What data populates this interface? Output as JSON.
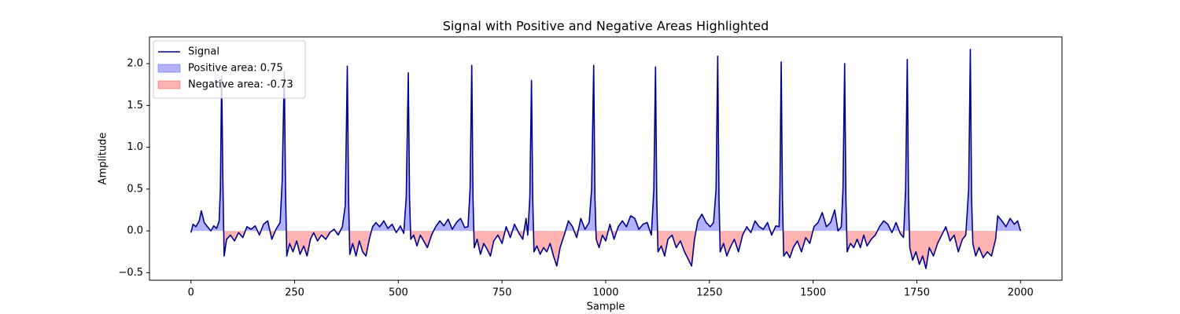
{
  "chart_data": {
    "type": "line",
    "title": "Signal with Positive and Negative Areas Highlighted",
    "x_label": "Sample",
    "y_label": "Amplitude",
    "xlim": [
      -100,
      2100
    ],
    "ylim": [
      -0.59,
      2.32
    ],
    "xticks": [
      0,
      250,
      500,
      750,
      1000,
      1250,
      1500,
      1750,
      2000
    ],
    "yticks": [
      {
        "value": -0.5,
        "label": "−0.5"
      },
      {
        "value": 0,
        "label": "0.0"
      },
      0.5,
      {
        "value": 1,
        "label": "1.0"
      },
      1.5,
      {
        "value": 2,
        "label": "2.0"
      }
    ],
    "grid": false,
    "legend": "upper left",
    "series": [
      {
        "name": "Signal",
        "color": "#00008b",
        "x": [
          0,
          5,
          12,
          20,
          25,
          32,
          40,
          48,
          55,
          62,
          68,
          71,
          74,
          77,
          80,
          86,
          95,
          105,
          115,
          125,
          135,
          145,
          155,
          165,
          175,
          185,
          195,
          205,
          215,
          220,
          225,
          228,
          231,
          238,
          246,
          255,
          263,
          272,
          280,
          288,
          296,
          305,
          315,
          325,
          335,
          345,
          355,
          365,
          372,
          377,
          380,
          383,
          390,
          398,
          406,
          414,
          422,
          430,
          438,
          446,
          455,
          465,
          475,
          485,
          495,
          505,
          513,
          519,
          524,
          527,
          530,
          537,
          545,
          553,
          561,
          570,
          580,
          590,
          600,
          610,
          620,
          630,
          640,
          650,
          660,
          668,
          673,
          677,
          680,
          683,
          690,
          698,
          706,
          714,
          722,
          730,
          740,
          750,
          760,
          770,
          780,
          790,
          800,
          808,
          812,
          817,
          821,
          824,
          827,
          834,
          842,
          850,
          858,
          866,
          874,
          882,
          890,
          900,
          910,
          920,
          930,
          940,
          950,
          960,
          966,
          971,
          974,
          977,
          984,
          992,
          1000,
          1010,
          1020,
          1030,
          1040,
          1050,
          1060,
          1070,
          1080,
          1090,
          1100,
          1110,
          1116,
          1120,
          1123,
          1126,
          1134,
          1142,
          1150,
          1160,
          1170,
          1180,
          1190,
          1200,
          1207,
          1214,
          1222,
          1232,
          1242,
          1252,
          1260,
          1266,
          1270,
          1273,
          1276,
          1284,
          1292,
          1300,
          1310,
          1320,
          1330,
          1340,
          1350,
          1360,
          1370,
          1380,
          1390,
          1400,
          1410,
          1418,
          1420,
          1423,
          1426,
          1429,
          1436,
          1444,
          1452,
          1462,
          1472,
          1482,
          1492,
          1502,
          1512,
          1522,
          1532,
          1542,
          1552,
          1560,
          1568,
          1572,
          1576,
          1579,
          1582,
          1590,
          1598,
          1606,
          1614,
          1622,
          1630,
          1640,
          1650,
          1660,
          1670,
          1680,
          1690,
          1700,
          1710,
          1718,
          1723,
          1727,
          1730,
          1733,
          1740,
          1748,
          1756,
          1764,
          1772,
          1780,
          1790,
          1800,
          1810,
          1820,
          1830,
          1840,
          1850,
          1860,
          1868,
          1875,
          1879,
          1882,
          1885,
          1892,
          1900,
          1910,
          1920,
          1930,
          1940,
          1945,
          1955,
          1965,
          1975,
          1985,
          1993,
          2000
        ],
        "values": [
          -0.02,
          0.08,
          0.05,
          0.12,
          0.24,
          0.1,
          0.05,
          0.0,
          0.06,
          0.03,
          0.12,
          0.5,
          1.85,
          0.6,
          -0.3,
          -0.1,
          -0.05,
          -0.12,
          -0.02,
          -0.08,
          0.05,
          0.02,
          0.06,
          -0.05,
          0.08,
          0.12,
          -0.1,
          0.02,
          0.1,
          0.6,
          1.9,
          0.5,
          -0.3,
          -0.15,
          -0.25,
          -0.12,
          -0.28,
          -0.18,
          -0.3,
          -0.1,
          -0.02,
          -0.12,
          -0.05,
          -0.1,
          -0.02,
          0.02,
          -0.05,
          0.05,
          0.3,
          1.97,
          0.4,
          -0.28,
          -0.15,
          -0.3,
          -0.12,
          -0.25,
          -0.3,
          -0.1,
          0.05,
          0.1,
          0.05,
          0.12,
          0.03,
          0.08,
          -0.02,
          0.06,
          -0.03,
          0.4,
          1.89,
          0.4,
          -0.1,
          -0.05,
          -0.18,
          -0.05,
          -0.12,
          -0.2,
          -0.05,
          0.05,
          0.12,
          0.06,
          0.14,
          0.02,
          0.1,
          0.15,
          0.04,
          0.05,
          0.5,
          1.98,
          0.4,
          -0.2,
          -0.1,
          -0.28,
          -0.15,
          -0.22,
          -0.3,
          -0.12,
          -0.05,
          -0.15,
          0.05,
          -0.08,
          0.08,
          -0.02,
          -0.1,
          0.15,
          -0.05,
          0.4,
          1.8,
          0.4,
          -0.25,
          -0.18,
          -0.28,
          -0.2,
          -0.25,
          -0.15,
          -0.3,
          -0.42,
          -0.2,
          -0.05,
          0.12,
          0.05,
          -0.08,
          0.15,
          0.02,
          0.1,
          0.5,
          1.98,
          0.4,
          -0.1,
          -0.2,
          -0.05,
          -0.12,
          0.08,
          -0.1,
          0.05,
          0.12,
          0.05,
          0.18,
          0.15,
          0.02,
          0.08,
          0.1,
          -0.05,
          0.5,
          1.96,
          0.4,
          -0.25,
          -0.18,
          -0.3,
          -0.1,
          -0.05,
          -0.2,
          -0.12,
          -0.25,
          -0.35,
          -0.42,
          -0.1,
          0.12,
          0.2,
          0.1,
          0.05,
          0.1,
          0.5,
          2.09,
          0.4,
          -0.25,
          -0.15,
          -0.3,
          -0.2,
          -0.1,
          -0.25,
          -0.05,
          0.05,
          -0.02,
          0.12,
          0.05,
          0.02,
          0.1,
          -0.05,
          0.06,
          0.05,
          0.5,
          2.02,
          0.4,
          -0.3,
          -0.25,
          -0.32,
          -0.2,
          -0.12,
          -0.25,
          -0.08,
          -0.15,
          0.05,
          0.1,
          0.22,
          0.05,
          0.1,
          0.25,
          0.0,
          0.05,
          0.5,
          2.0,
          0.4,
          -0.25,
          -0.15,
          -0.2,
          -0.1,
          -0.2,
          -0.05,
          -0.18,
          -0.1,
          -0.05,
          0.05,
          0.12,
          0.08,
          -0.02,
          0.1,
          -0.03,
          -0.08,
          0.5,
          2.05,
          0.4,
          -0.2,
          -0.35,
          -0.25,
          -0.4,
          -0.3,
          -0.45,
          -0.2,
          -0.3,
          -0.15,
          -0.05,
          0.05,
          -0.12,
          -0.05,
          -0.25,
          -0.1,
          -0.05,
          0.5,
          2.17,
          0.4,
          -0.15,
          -0.3,
          -0.2,
          -0.32,
          -0.25,
          -0.3,
          -0.1,
          0.18,
          0.12,
          0.05,
          0.15,
          0.08,
          0.12,
          0.0
        ]
      }
    ],
    "fills": [
      {
        "name": "Positive area: 0.75",
        "color": "#0000ff",
        "alpha": 0.3,
        "where": "positive"
      },
      {
        "name": "Negative area: -0.73",
        "color": "#ff0000",
        "alpha": 0.3,
        "where": "negative"
      }
    ]
  }
}
